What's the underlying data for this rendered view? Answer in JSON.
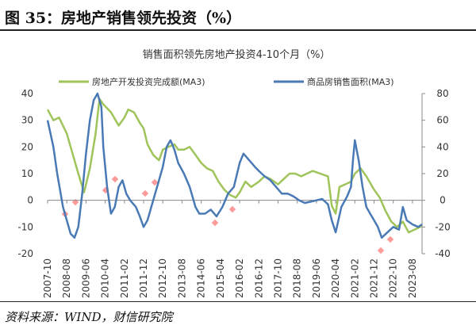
{
  "header": {
    "figure_title": "图 35：房地产销售领先投资（%）"
  },
  "footer": {
    "source": "资料来源：WIND，财信研究院"
  },
  "colors": {
    "series1": "#9fc45a",
    "series2": "#4a7ab5",
    "marker": "#ff9a9a",
    "axis": "#888888"
  },
  "chart_data": {
    "type": "line",
    "title": "销售面积领先房地产投资4-10个月（%）",
    "x_ticks": [
      "2007-10",
      "2008-08",
      "2009-06",
      "2010-04",
      "2011-02",
      "2011-12",
      "2012-10",
      "2013-08",
      "2014-06",
      "2015-04",
      "2016-02",
      "2016-12",
      "2017-10",
      "2018-08",
      "2019-06",
      "2020-04",
      "2021-02",
      "2021-12",
      "2022-10",
      "2023-08"
    ],
    "x_start": "2007-10",
    "x_end": "2024-01",
    "y_left": {
      "ticks": [
        40,
        30,
        20,
        10,
        0,
        -10,
        -20
      ],
      "min": -20,
      "max": 40
    },
    "y_right": {
      "ticks": [
        80,
        60,
        40,
        20,
        0,
        -20,
        -40
      ],
      "min": -40,
      "max": 80
    },
    "legend_position": "top",
    "series": [
      {
        "name": "房地产开发投资完成额(MA3)",
        "axis": "left",
        "points": [
          [
            "2007-10",
            34
          ],
          [
            "2008-01",
            30
          ],
          [
            "2008-04",
            31
          ],
          [
            "2008-08",
            25
          ],
          [
            "2008-12",
            15
          ],
          [
            "2009-02",
            10
          ],
          [
            "2009-05",
            3
          ],
          [
            "2009-08",
            12
          ],
          [
            "2009-11",
            25
          ],
          [
            "2010-01",
            38
          ],
          [
            "2010-03",
            36
          ],
          [
            "2010-07",
            33
          ],
          [
            "2010-11",
            28
          ],
          [
            "2011-02",
            31
          ],
          [
            "2011-04",
            34
          ],
          [
            "2011-07",
            33
          ],
          [
            "2011-10",
            29
          ],
          [
            "2011-12",
            27
          ],
          [
            "2012-02",
            21
          ],
          [
            "2012-05",
            17
          ],
          [
            "2012-08",
            15
          ],
          [
            "2012-10",
            19
          ],
          [
            "2013-01",
            20
          ],
          [
            "2013-04",
            21
          ],
          [
            "2013-06",
            19
          ],
          [
            "2013-09",
            19
          ],
          [
            "2013-12",
            20
          ],
          [
            "2014-03",
            17
          ],
          [
            "2014-06",
            14
          ],
          [
            "2014-09",
            12
          ],
          [
            "2014-12",
            11
          ],
          [
            "2015-03",
            7
          ],
          [
            "2015-06",
            4
          ],
          [
            "2015-09",
            2
          ],
          [
            "2015-12",
            1
          ],
          [
            "2016-02",
            3
          ],
          [
            "2016-05",
            7
          ],
          [
            "2016-08",
            5
          ],
          [
            "2016-12",
            7
          ],
          [
            "2017-03",
            9
          ],
          [
            "2017-06",
            8
          ],
          [
            "2017-10",
            6
          ],
          [
            "2018-01",
            8
          ],
          [
            "2018-04",
            10
          ],
          [
            "2018-07",
            10
          ],
          [
            "2018-10",
            9
          ],
          [
            "2019-01",
            10
          ],
          [
            "2019-04",
            11
          ],
          [
            "2019-08",
            10
          ],
          [
            "2019-12",
            9
          ],
          [
            "2020-02",
            -2
          ],
          [
            "2020-04",
            -5
          ],
          [
            "2020-06",
            5
          ],
          [
            "2020-09",
            6
          ],
          [
            "2020-12",
            7
          ],
          [
            "2021-02",
            10
          ],
          [
            "2021-05",
            12
          ],
          [
            "2021-08",
            9
          ],
          [
            "2021-12",
            4
          ],
          [
            "2022-03",
            1
          ],
          [
            "2022-06",
            -4
          ],
          [
            "2022-09",
            -8
          ],
          [
            "2022-12",
            -10
          ],
          [
            "2023-03",
            -8
          ],
          [
            "2023-06",
            -12
          ],
          [
            "2023-09",
            -11
          ],
          [
            "2023-12",
            -10
          ],
          [
            "2024-01",
            -9
          ]
        ]
      },
      {
        "name": "商品房销售面积(MA3)",
        "axis": "right",
        "points": [
          [
            "2007-10",
            60
          ],
          [
            "2008-01",
            40
          ],
          [
            "2008-03",
            20
          ],
          [
            "2008-06",
            -5
          ],
          [
            "2008-08",
            -15
          ],
          [
            "2008-10",
            -25
          ],
          [
            "2008-12",
            -28
          ],
          [
            "2009-02",
            -20
          ],
          [
            "2009-04",
            5
          ],
          [
            "2009-06",
            35
          ],
          [
            "2009-08",
            60
          ],
          [
            "2009-10",
            75
          ],
          [
            "2009-12",
            80
          ],
          [
            "2010-02",
            70
          ],
          [
            "2010-03",
            40
          ],
          [
            "2010-05",
            10
          ],
          [
            "2010-07",
            -10
          ],
          [
            "2010-09",
            -5
          ],
          [
            "2010-11",
            10
          ],
          [
            "2011-01",
            15
          ],
          [
            "2011-03",
            5
          ],
          [
            "2011-05",
            0
          ],
          [
            "2011-08",
            -5
          ],
          [
            "2011-10",
            -12
          ],
          [
            "2011-12",
            -20
          ],
          [
            "2012-02",
            -15
          ],
          [
            "2012-04",
            -5
          ],
          [
            "2012-07",
            10
          ],
          [
            "2012-10",
            25
          ],
          [
            "2012-12",
            40
          ],
          [
            "2013-02",
            45
          ],
          [
            "2013-04",
            38
          ],
          [
            "2013-06",
            28
          ],
          [
            "2013-09",
            20
          ],
          [
            "2013-12",
            10
          ],
          [
            "2014-03",
            -5
          ],
          [
            "2014-05",
            -10
          ],
          [
            "2014-08",
            -10
          ],
          [
            "2014-11",
            -7
          ],
          [
            "2015-02",
            -12
          ],
          [
            "2015-05",
            -5
          ],
          [
            "2015-08",
            5
          ],
          [
            "2015-11",
            10
          ],
          [
            "2016-02",
            28
          ],
          [
            "2016-04",
            35
          ],
          [
            "2016-07",
            30
          ],
          [
            "2016-10",
            25
          ],
          [
            "2016-12",
            22
          ],
          [
            "2017-03",
            18
          ],
          [
            "2017-06",
            15
          ],
          [
            "2017-09",
            10
          ],
          [
            "2017-12",
            5
          ],
          [
            "2018-03",
            5
          ],
          [
            "2018-06",
            3
          ],
          [
            "2018-09",
            0
          ],
          [
            "2018-12",
            -2
          ],
          [
            "2019-03",
            -1
          ],
          [
            "2019-06",
            0
          ],
          [
            "2019-09",
            1
          ],
          [
            "2019-12",
            -3
          ],
          [
            "2020-02",
            -15
          ],
          [
            "2020-04",
            -24
          ],
          [
            "2020-07",
            -5
          ],
          [
            "2020-10",
            3
          ],
          [
            "2020-12",
            10
          ],
          [
            "2021-01",
            30
          ],
          [
            "2021-02",
            45
          ],
          [
            "2021-04",
            30
          ],
          [
            "2021-06",
            10
          ],
          [
            "2021-08",
            -5
          ],
          [
            "2021-10",
            -10
          ],
          [
            "2021-12",
            -15
          ],
          [
            "2022-02",
            -20
          ],
          [
            "2022-04",
            -28
          ],
          [
            "2022-07",
            -24
          ],
          [
            "2022-10",
            -20
          ],
          [
            "2023-01",
            -22
          ],
          [
            "2023-03",
            -5
          ],
          [
            "2023-05",
            -15
          ],
          [
            "2023-08",
            -18
          ],
          [
            "2023-11",
            -20
          ],
          [
            "2024-01",
            -18
          ]
        ]
      }
    ]
  }
}
